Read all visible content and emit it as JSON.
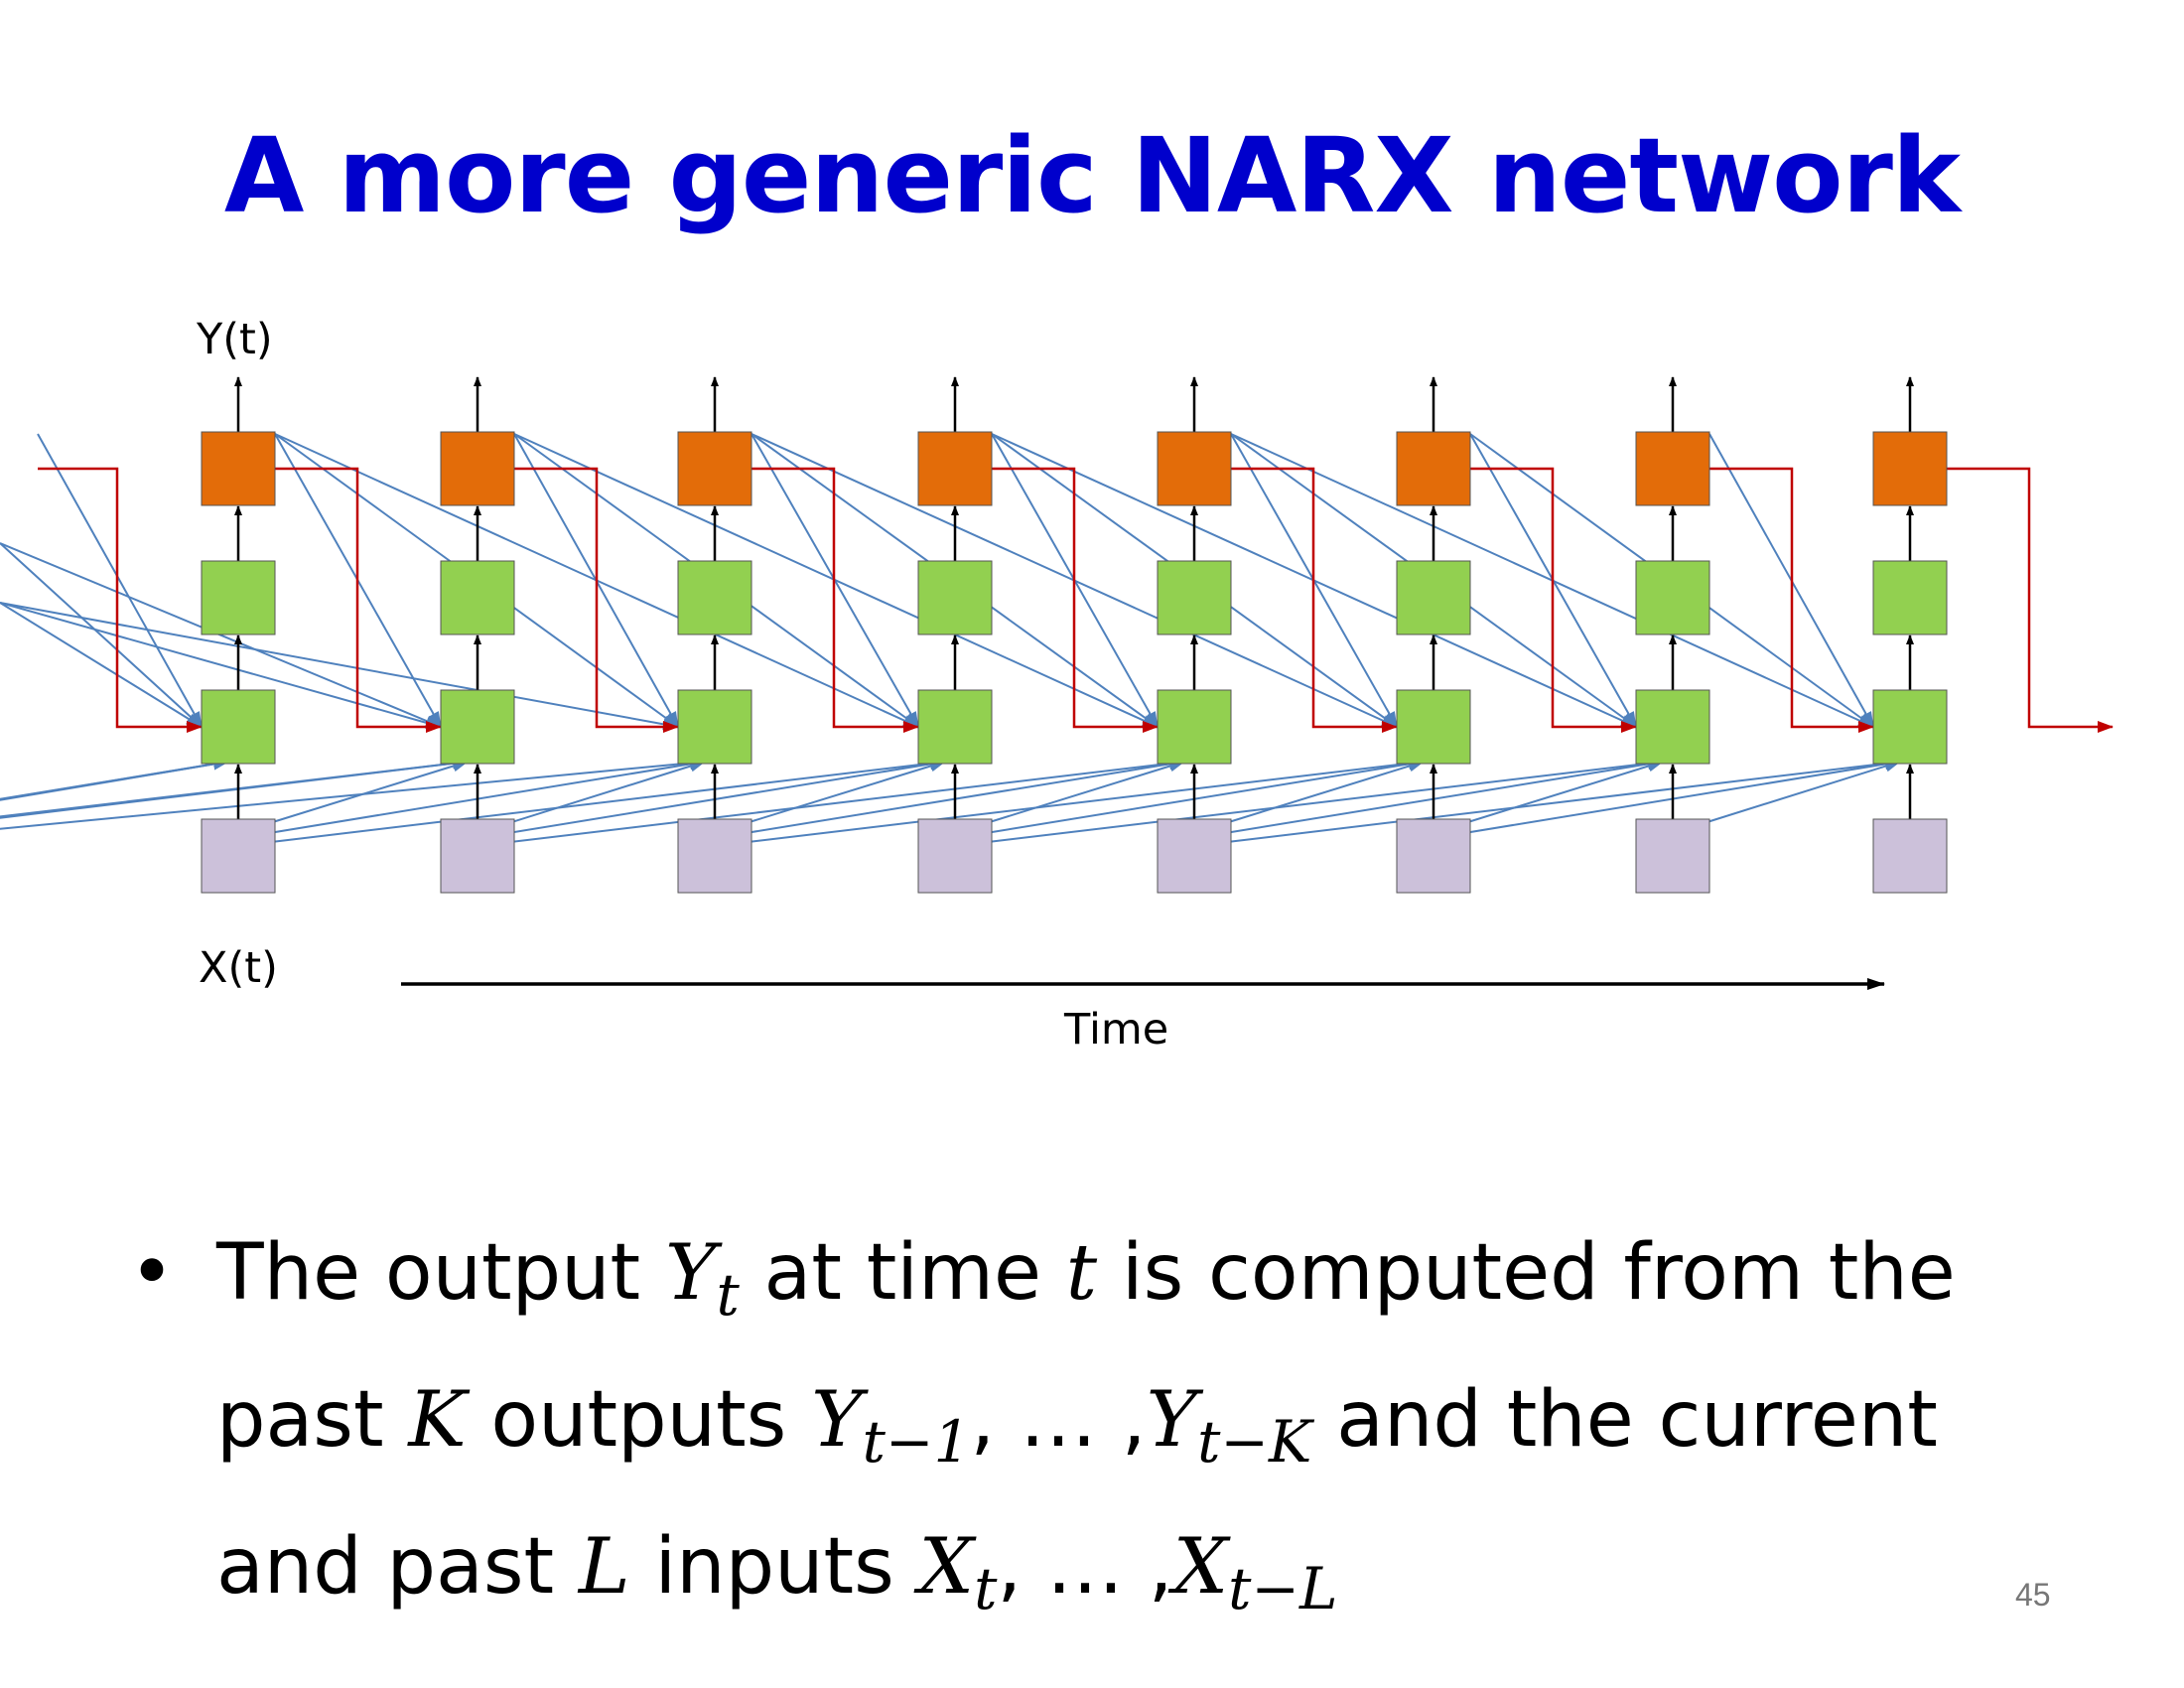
{
  "slide": {
    "title": "A more generic NARX network",
    "page_number": "45"
  },
  "diagram": {
    "output_label": "Y(t)",
    "input_label": "X(t)",
    "time_label": "Time",
    "timesteps": 8,
    "colors": {
      "output_node": "#e36c09",
      "hidden_node": "#92d050",
      "input_node": "#ccc1da",
      "feedback_connection": "#c00000",
      "delay_connection": "#4f81bd",
      "vertical_arrow": "#000000"
    }
  },
  "bullet": {
    "t1": "The output ",
    "y": "Y",
    "sub_t": "t",
    "t2": " at time ",
    "t": "t",
    "t3": " is computed from the past ",
    "k": "K",
    "t4": " outputs ",
    "sub_t1": "t−1",
    "sep": ", … ,",
    "sub_tk": "t−K",
    "t5": " and the current and past ",
    "l": "L",
    "t6": " inputs  ",
    "x": "X",
    "sub_tl": "t−L"
  }
}
